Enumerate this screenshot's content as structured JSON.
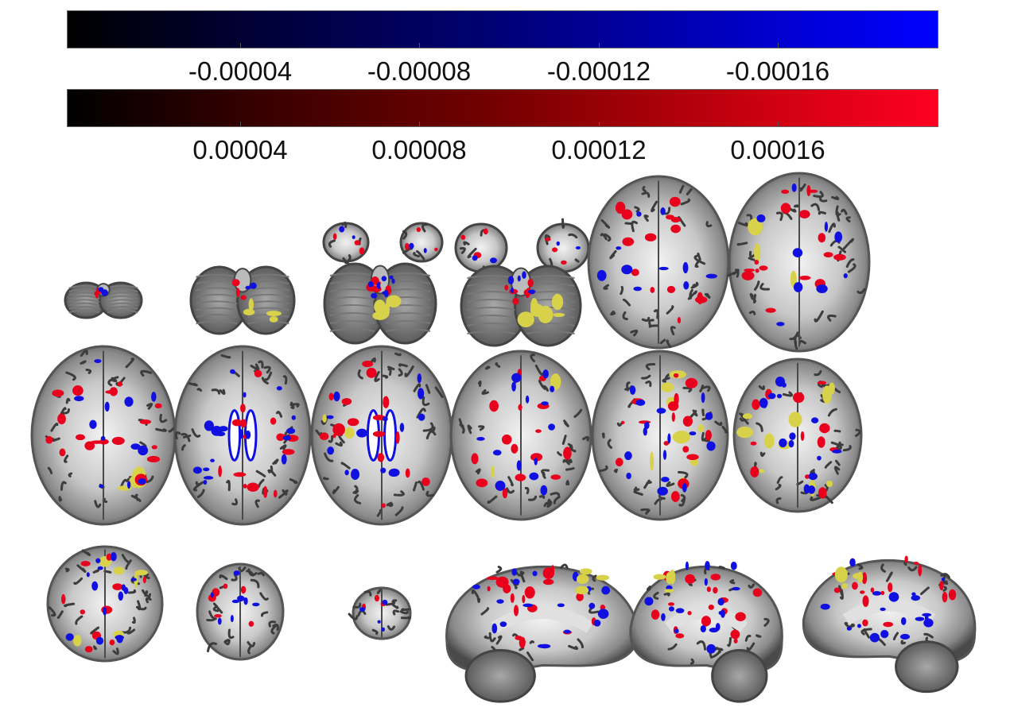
{
  "colorbars": {
    "negative": {
      "gradient_colors": [
        "#000000",
        "#0000ff"
      ],
      "tick_labels": [
        "-0.00004",
        "-0.00008",
        "-0.00012",
        "-0.00016"
      ]
    },
    "positive": {
      "gradient_colors": [
        "#000000",
        "#ff0022"
      ],
      "tick_labels": [
        "0.00004",
        "0.00008",
        "0.00012",
        "0.00016"
      ]
    }
  },
  "overlay_colors": {
    "negative": "#1010e0",
    "positive": "#e8001c",
    "highlight": "#d8d24a"
  },
  "slices": {
    "axial_row_1_count": 6,
    "axial_row_2_count": 6,
    "axial_row_3_count": 3,
    "sagittal_count": 3
  }
}
